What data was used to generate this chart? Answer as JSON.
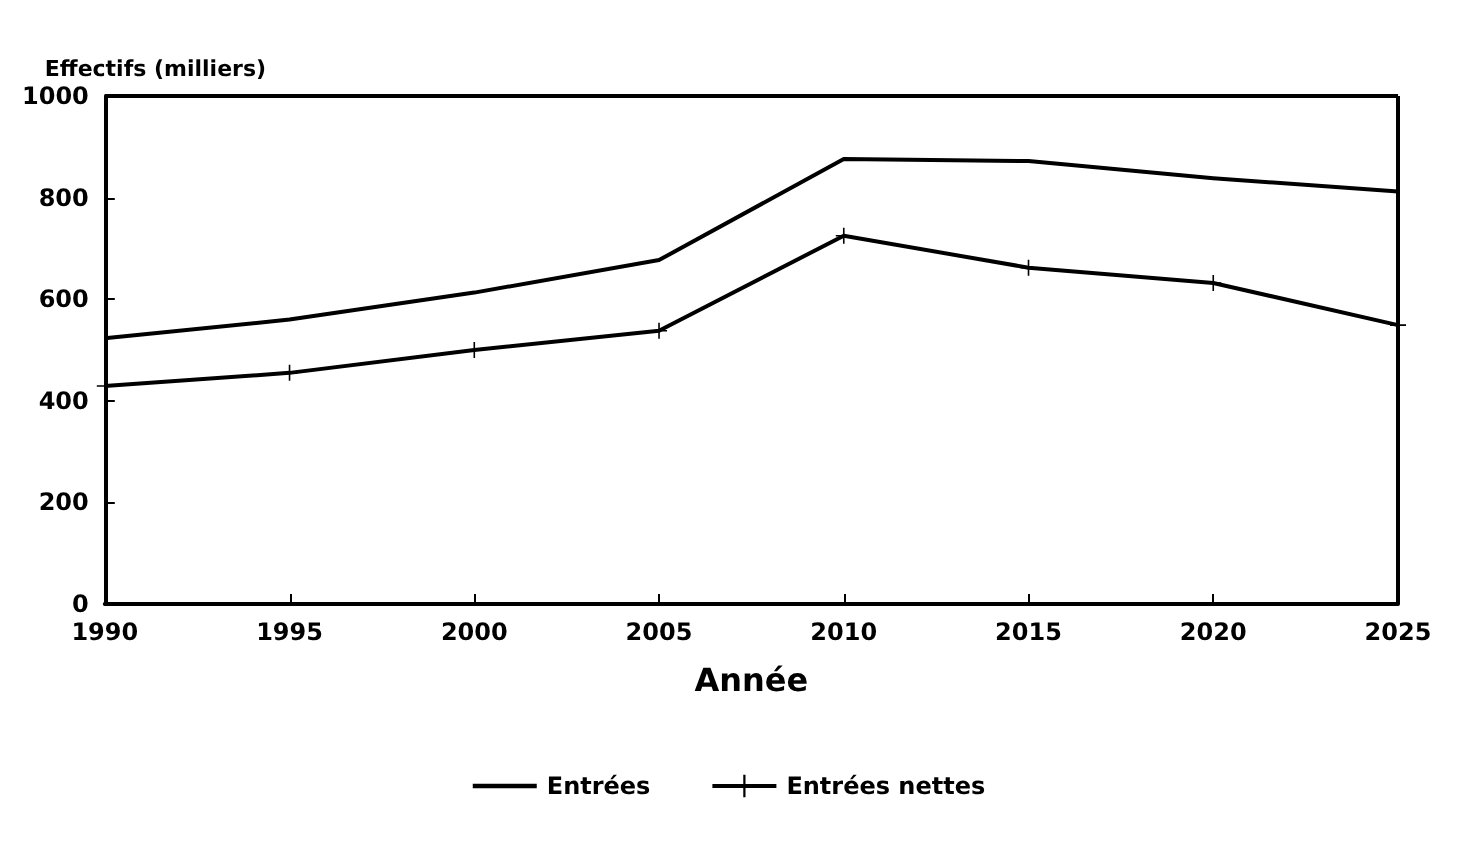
{
  "chart_data": {
    "type": "line",
    "ylabel": "Effectifs (milliers)",
    "xlabel": "Année",
    "x": [
      1990,
      1995,
      2000,
      2005,
      2010,
      2015,
      2020,
      2025
    ],
    "series": [
      {
        "name": "Entrées",
        "color": "#000000",
        "marker": "none",
        "values": [
          523,
          560,
          613,
          677,
          876,
          872,
          838,
          812
        ]
      },
      {
        "name": "Entrées nettes",
        "color": "#000000",
        "marker": "cross",
        "values": [
          429,
          455,
          500,
          538,
          725,
          662,
          632,
          549
        ]
      }
    ],
    "xlim": [
      1990,
      2025
    ],
    "xticks": [
      1990,
      1995,
      2000,
      2005,
      2010,
      2015,
      2020,
      2025
    ],
    "ylim": [
      0,
      1000
    ],
    "yticks": [
      0,
      200,
      400,
      600,
      800,
      1000
    ],
    "grid": false,
    "legend": "bottom",
    "line_style": "solid"
  }
}
